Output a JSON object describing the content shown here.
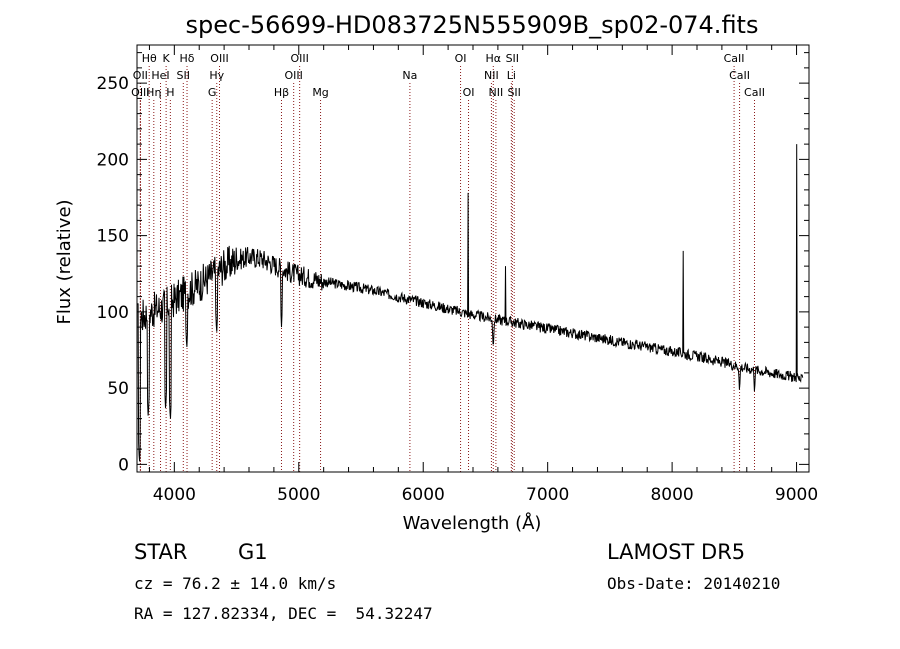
{
  "chart_data": {
    "type": "line",
    "title": "spec-56699-HD083725N555909B_sp02-074.fits",
    "xlabel": "Wavelength (Å)",
    "ylabel": "Flux (relative)",
    "xlim": [
      3700,
      9100
    ],
    "ylim": [
      -5,
      275
    ],
    "xticks": [
      4000,
      5000,
      6000,
      7000,
      8000,
      9000
    ],
    "yticks": [
      0,
      50,
      100,
      150,
      200,
      250
    ],
    "grid": false,
    "line_color": "#000000",
    "marker_color": "#8b1a1a",
    "continuum_knots": [
      [
        3700,
        95
      ],
      [
        3800,
        100
      ],
      [
        3900,
        103
      ],
      [
        4000,
        108
      ],
      [
        4100,
        113
      ],
      [
        4200,
        118
      ],
      [
        4300,
        124
      ],
      [
        4400,
        130
      ],
      [
        4500,
        134
      ],
      [
        4600,
        136
      ],
      [
        4700,
        135
      ],
      [
        4800,
        131
      ],
      [
        4900,
        127
      ],
      [
        5000,
        124
      ],
      [
        5200,
        120
      ],
      [
        5400,
        117
      ],
      [
        5600,
        114
      ],
      [
        5800,
        110
      ],
      [
        6000,
        106
      ],
      [
        6200,
        102
      ],
      [
        6400,
        98
      ],
      [
        6600,
        95
      ],
      [
        6800,
        92
      ],
      [
        7000,
        89
      ],
      [
        7200,
        86
      ],
      [
        7400,
        83
      ],
      [
        7600,
        80
      ],
      [
        7800,
        77
      ],
      [
        8000,
        74
      ],
      [
        8200,
        71
      ],
      [
        8400,
        67
      ],
      [
        8600,
        63
      ],
      [
        8800,
        60
      ],
      [
        9000,
        57
      ],
      [
        9050,
        55
      ]
    ],
    "spikes": [
      [
        6360,
        178
      ],
      [
        6660,
        130
      ],
      [
        8090,
        140
      ],
      [
        9000,
        210
      ]
    ],
    "dips": [
      [
        3720,
        0
      ],
      [
        3790,
        30
      ],
      [
        3930,
        35
      ],
      [
        3968,
        28
      ],
      [
        4100,
        75
      ],
      [
        4340,
        85
      ],
      [
        4861,
        90
      ],
      [
        6563,
        75
      ],
      [
        8542,
        47
      ],
      [
        8662,
        46
      ]
    ],
    "lines": [
      {
        "label": "Hθ",
        "wave": 3798,
        "row": 0
      },
      {
        "label": "OII",
        "wave": 3727,
        "row": 1
      },
      {
        "label": "OIII",
        "wave": 3727,
        "row": 2
      },
      {
        "label": "Hη",
        "wave": 3835,
        "row": 2
      },
      {
        "label": "HeI",
        "wave": 3889,
        "row": 1
      },
      {
        "label": "K",
        "wave": 3934,
        "row": 0
      },
      {
        "label": "H",
        "wave": 3968,
        "row": 2
      },
      {
        "label": "Hδ",
        "wave": 4102,
        "row": 0
      },
      {
        "label": "SII",
        "wave": 4072,
        "row": 1
      },
      {
        "label": "OIII",
        "wave": 4363,
        "row": 0
      },
      {
        "label": "Hγ",
        "wave": 4341,
        "row": 1
      },
      {
        "label": "G",
        "wave": 4304,
        "row": 2
      },
      {
        "label": "Hβ",
        "wave": 4861,
        "row": 2
      },
      {
        "label": "OIII",
        "wave": 5007,
        "row": 0
      },
      {
        "label": "OIII",
        "wave": 4959,
        "row": 1
      },
      {
        "label": "Mg",
        "wave": 5175,
        "row": 2
      },
      {
        "label": "Na",
        "wave": 5893,
        "row": 1
      },
      {
        "label": "OI",
        "wave": 6300,
        "row": 0
      },
      {
        "label": "OI",
        "wave": 6364,
        "row": 2
      },
      {
        "label": "Hα",
        "wave": 6563,
        "row": 0
      },
      {
        "label": "SII",
        "wave": 6716,
        "row": 0
      },
      {
        "label": "NII",
        "wave": 6548,
        "row": 1
      },
      {
        "label": "Li",
        "wave": 6708,
        "row": 1
      },
      {
        "label": "NII",
        "wave": 6584,
        "row": 2
      },
      {
        "label": "SII",
        "wave": 6731,
        "row": 2
      },
      {
        "label": "CaII",
        "wave": 8498,
        "row": 0
      },
      {
        "label": "CaII",
        "wave": 8542,
        "row": 1
      },
      {
        "label": "CaII",
        "wave": 8662,
        "row": 2
      }
    ]
  },
  "info": {
    "object_class": "STAR",
    "subclass": "G1",
    "survey": "LAMOST DR5",
    "redshift": "cz = 76.2 ± 14.0 km/s",
    "obs_date": "Obs-Date: 20140210",
    "coords": "RA = 127.82334, DEC =  54.32247"
  }
}
